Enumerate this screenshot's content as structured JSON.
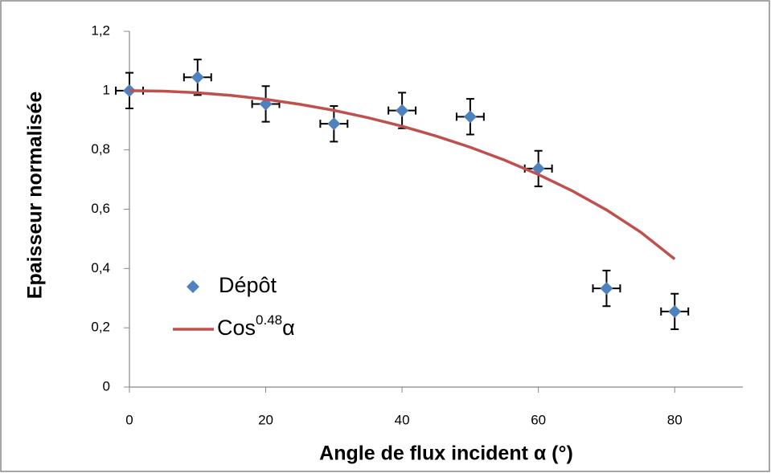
{
  "chart_data": {
    "type": "scatter",
    "xlabel": "Angle de flux incident α (°)",
    "ylabel": "Epaisseur normalisée",
    "xlim": [
      0,
      90
    ],
    "xticks": [
      0,
      20,
      40,
      60,
      80
    ],
    "ylim": [
      0,
      1.2
    ],
    "yticks": [
      0,
      {
        "value": 0.2,
        "label": "0,2"
      },
      {
        "value": 0.4,
        "label": "0,4"
      },
      {
        "value": 0.6,
        "label": "0,6"
      },
      {
        "value": 0.8,
        "label": "0,8"
      },
      1,
      {
        "value": 1.2,
        "label": "1,2"
      }
    ],
    "grid": false,
    "series": [
      {
        "name": "Dépôt",
        "color": "#4f81bd",
        "kind": "points",
        "x": [
          0,
          10,
          20,
          30,
          40,
          50,
          60,
          70,
          80
        ],
        "values": [
          1.0,
          1.045,
          0.955,
          0.888,
          0.933,
          0.912,
          0.737,
          0.333,
          0.255
        ],
        "xerr": [
          2,
          2,
          2,
          2,
          2,
          2,
          2,
          2,
          2
        ],
        "yerr": [
          0.06,
          0.06,
          0.06,
          0.06,
          0.06,
          0.06,
          0.06,
          0.06,
          0.06
        ]
      },
      {
        "name": {
          "text": "Cos",
          "superscript": "0.48",
          "suffix": "α"
        },
        "color": "#c0504d",
        "kind": "line",
        "x": [
          0,
          5,
          10,
          15,
          20,
          25,
          30,
          35,
          40,
          45,
          50,
          55,
          60,
          65,
          70,
          75,
          80
        ],
        "values": [
          1,
          0.99817,
          0.99268,
          0.9835,
          0.97059,
          0.95388,
          0.93329,
          0.90866,
          0.87992,
          0.84675,
          0.80885,
          0.76582,
          0.71701,
          0.66137,
          0.59752,
          0.52269,
          0.43157
        ]
      }
    ]
  }
}
